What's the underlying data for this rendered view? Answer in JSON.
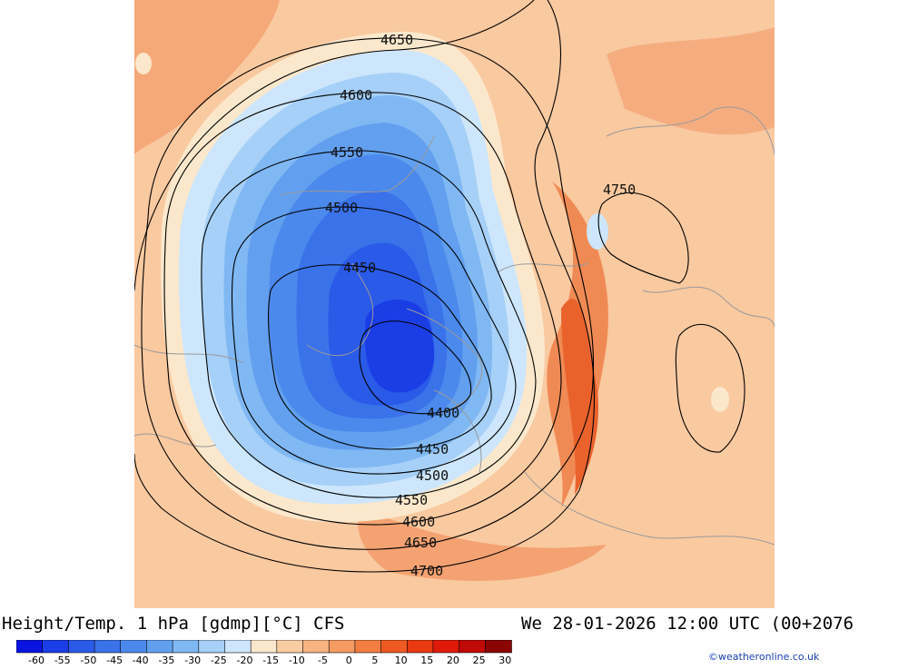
{
  "title_left": "Height/Temp. 1 hPa [gdmp][°C] CFS",
  "title_right": "We 28-01-2026 12:00 UTC (00+2076",
  "credit": "©weatheronline.co.uk",
  "contour_labels": [
    "4650",
    "4600",
    "4550",
    "4500",
    "4450",
    "4400",
    "4450",
    "4500",
    "4550",
    "4600",
    "4650",
    "4700",
    "4750"
  ],
  "legend": {
    "ticks": [
      "-60",
      "-55",
      "-50",
      "-45",
      "-40",
      "-35",
      "-30",
      "-25",
      "-20",
      "-15",
      "-10",
      "-5",
      "0",
      "5",
      "10",
      "15",
      "20",
      "25",
      "30"
    ],
    "colors": [
      "#0a14e0",
      "#1a3de6",
      "#2a5ae8",
      "#3a72ea",
      "#4c89ec",
      "#62a0ef",
      "#80b8f3",
      "#a6d0f7",
      "#cde6fb",
      "#fbe8cc",
      "#f9cda2",
      "#f7b482",
      "#f59a62",
      "#f27e42",
      "#ee5a22",
      "#ea3a12",
      "#e01a0a",
      "#c00a08",
      "#8a0404"
    ]
  }
}
